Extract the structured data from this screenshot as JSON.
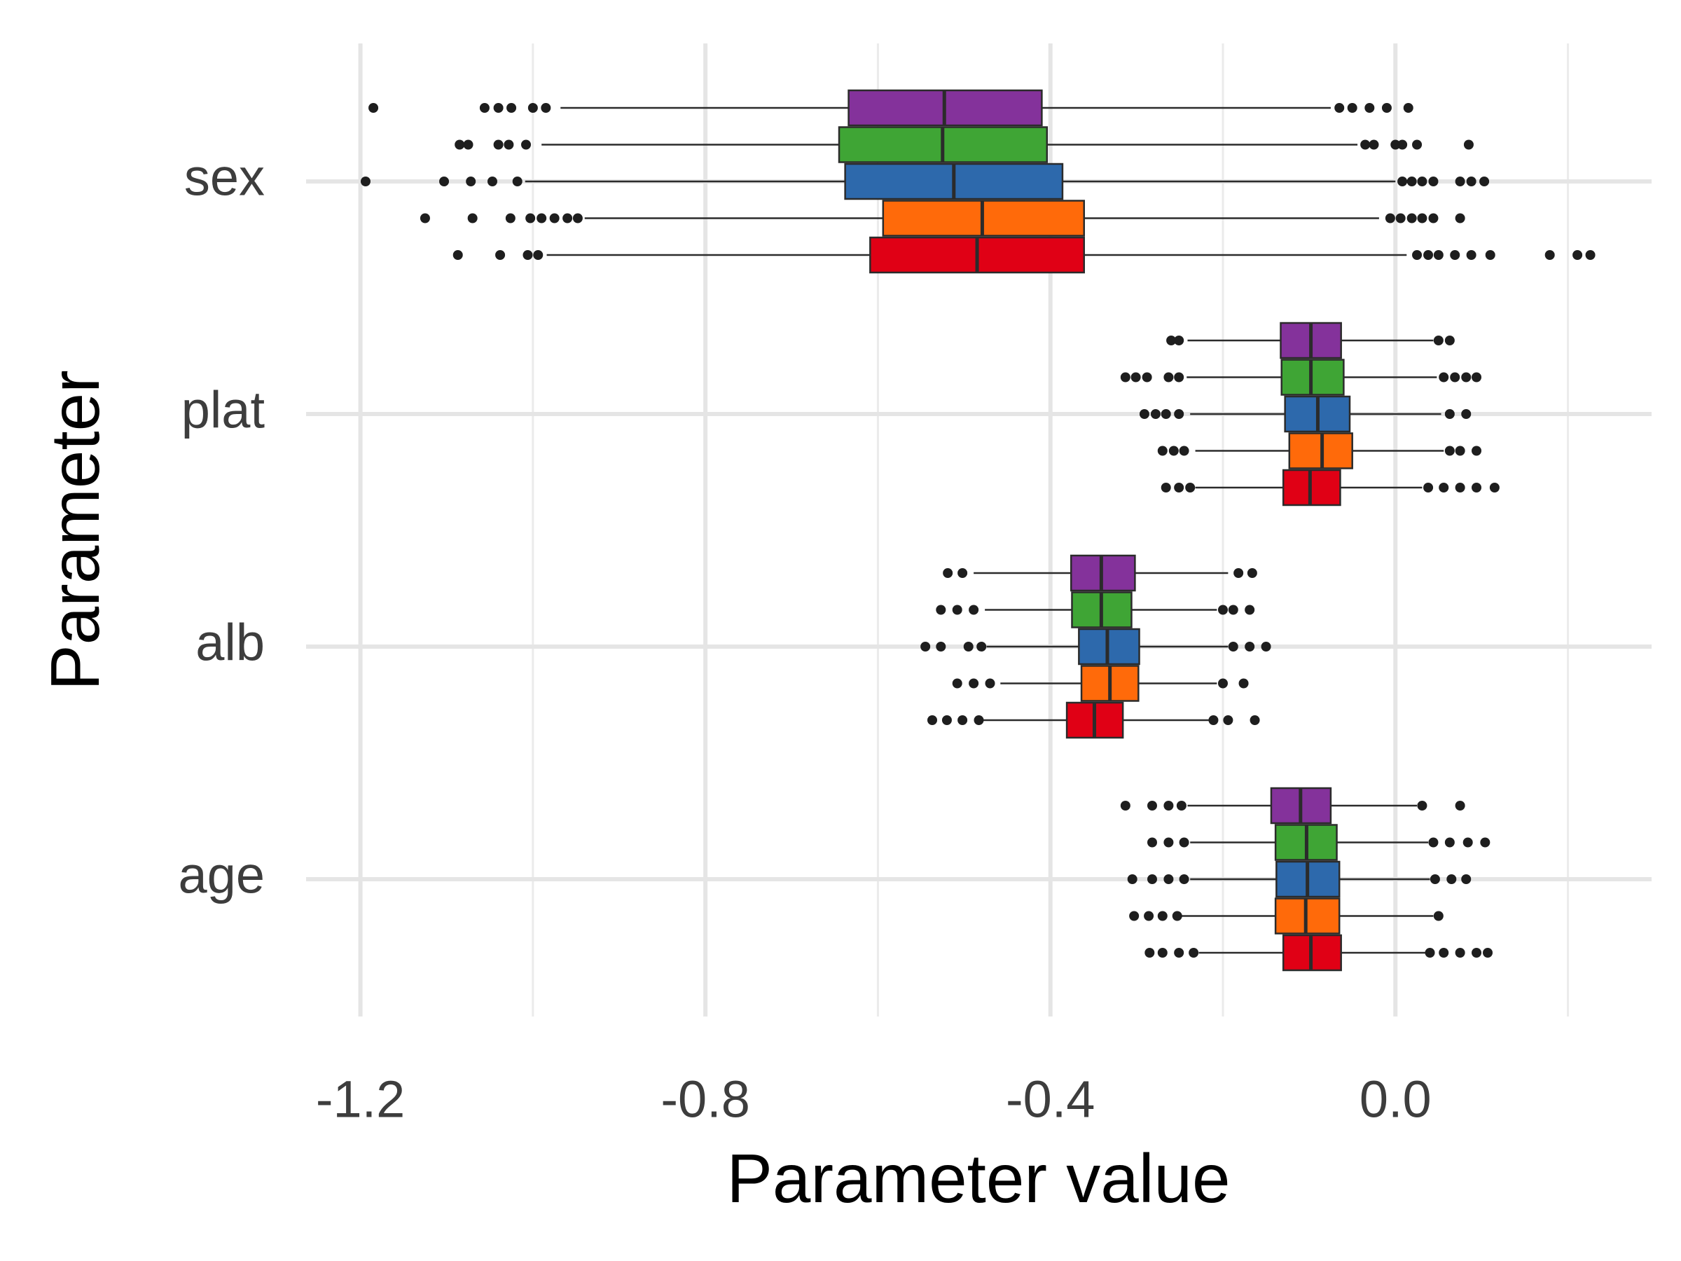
{
  "chart_data": {
    "type": "boxplot",
    "orientation": "horizontal",
    "x_label": "Parameter value",
    "y_label": "Parameter",
    "categories": [
      "sex",
      "plat",
      "alb",
      "age"
    ],
    "xlim": [
      -1.263,
      0.297
    ],
    "xticks": [
      -1.2,
      -0.8,
      -0.4,
      {
        "value": 0,
        "label": "0.0"
      }
    ],
    "xminorticks": [
      -1.0,
      -0.6,
      -0.2,
      0.2
    ],
    "grid": true,
    "series": [
      {
        "color": "#84329b",
        "boxes": [
          {
            "whislo": -0.968,
            "q1": -0.634,
            "med": -0.523,
            "q3": -0.41,
            "whishi": -0.075,
            "fliers": [
              -1.185,
              -1.056,
              -1.04,
              -1.025,
              -1.0,
              -0.985,
              -0.065,
              -0.05,
              -0.03,
              -0.01,
              0.015
            ]
          },
          {
            "whislo": -0.241,
            "q1": -0.133,
            "med": -0.098,
            "q3": -0.063,
            "whishi": 0.044,
            "fliers": [
              -0.26,
              -0.251,
              0.05,
              0.063
            ]
          },
          {
            "whislo": -0.489,
            "q1": -0.376,
            "med": -0.341,
            "q3": -0.302,
            "whishi": -0.194,
            "fliers": [
              -0.519,
              -0.502,
              -0.182,
              -0.166
            ]
          },
          {
            "whislo": -0.241,
            "q1": -0.144,
            "med": -0.11,
            "q3": -0.075,
            "whishi": 0.025,
            "fliers": [
              -0.313,
              -0.282,
              -0.263,
              -0.248,
              0.031,
              0.075
            ]
          }
        ]
      },
      {
        "color": "#3fa535",
        "boxes": [
          {
            "whislo": -0.99,
            "q1": -0.645,
            "med": -0.525,
            "q3": -0.404,
            "whishi": -0.044,
            "fliers": [
              -1.085,
              -1.075,
              -1.04,
              -1.028,
              -1.008,
              -0.035,
              -0.025,
              0.0,
              0.008,
              0.025,
              0.085
            ]
          },
          {
            "whislo": -0.242,
            "q1": -0.132,
            "med": -0.098,
            "q3": -0.06,
            "whishi": 0.048,
            "fliers": [
              -0.313,
              -0.301,
              -0.288,
              -0.263,
              -0.251,
              0.056,
              0.069,
              0.082,
              0.094
            ]
          },
          {
            "whislo": -0.476,
            "q1": -0.375,
            "med": -0.341,
            "q3": -0.306,
            "whishi": -0.207,
            "fliers": [
              -0.527,
              -0.508,
              -0.489,
              -0.2,
              -0.188,
              -0.169
            ]
          },
          {
            "whislo": -0.238,
            "q1": -0.139,
            "med": -0.103,
            "q3": -0.068,
            "whishi": 0.038,
            "fliers": [
              -0.282,
              -0.263,
              -0.245,
              0.044,
              0.063,
              0.084,
              0.104
            ]
          }
        ]
      },
      {
        "color": "#2d69ac",
        "boxes": [
          {
            "whislo": -1.009,
            "q1": -0.638,
            "med": -0.512,
            "q3": -0.386,
            "whishi": 0.0,
            "fliers": [
              -1.194,
              -1.103,
              -1.072,
              -1.047,
              -1.018,
              0.008,
              0.019,
              0.031,
              0.044,
              0.075,
              0.088,
              0.103
            ]
          },
          {
            "whislo": -0.238,
            "q1": -0.128,
            "med": -0.09,
            "q3": -0.053,
            "whishi": 0.053,
            "fliers": [
              -0.291,
              -0.278,
              -0.266,
              -0.251,
              0.063,
              0.082
            ]
          },
          {
            "whislo": -0.474,
            "q1": -0.367,
            "med": -0.334,
            "q3": -0.297,
            "whishi": -0.194,
            "fliers": [
              -0.545,
              -0.527,
              -0.495,
              -0.48,
              -0.188,
              -0.169,
              -0.15
            ]
          },
          {
            "whislo": -0.238,
            "q1": -0.138,
            "med": -0.102,
            "q3": -0.065,
            "whishi": 0.04,
            "fliers": [
              -0.305,
              -0.282,
              -0.263,
              -0.245,
              0.046,
              0.065,
              0.082
            ]
          }
        ]
      },
      {
        "color": "#ff6a0a",
        "boxes": [
          {
            "whislo": -0.94,
            "q1": -0.594,
            "med": -0.479,
            "q3": -0.361,
            "whishi": -0.019,
            "fliers": [
              -1.125,
              -1.07,
              -1.026,
              -1.003,
              -0.99,
              -0.975,
              -0.96,
              -0.948,
              -0.006,
              0.006,
              0.019,
              0.031,
              0.044,
              0.075
            ]
          },
          {
            "whislo": -0.232,
            "q1": -0.123,
            "med": -0.085,
            "q3": -0.05,
            "whishi": 0.056,
            "fliers": [
              -0.27,
              -0.257,
              -0.245,
              0.063,
              0.075,
              0.094
            ]
          },
          {
            "whislo": -0.458,
            "q1": -0.364,
            "med": -0.331,
            "q3": -0.298,
            "whishi": -0.207,
            "fliers": [
              -0.508,
              -0.489,
              -0.47,
              -0.2,
              -0.176
            ]
          },
          {
            "whislo": -0.248,
            "q1": -0.139,
            "med": -0.104,
            "q3": -0.065,
            "whishi": 0.044,
            "fliers": [
              -0.303,
              -0.286,
              -0.27,
              -0.253,
              0.05
            ]
          }
        ]
      },
      {
        "color": "#e00015",
        "boxes": [
          {
            "whislo": -0.984,
            "q1": -0.609,
            "med": -0.485,
            "q3": -0.361,
            "whishi": 0.013,
            "fliers": [
              -1.087,
              -1.038,
              -1.006,
              -0.994,
              0.025,
              0.038,
              0.05,
              0.069,
              0.088,
              0.11,
              0.179,
              0.211,
              0.226
            ]
          },
          {
            "whislo": -0.232,
            "q1": -0.13,
            "med": -0.099,
            "q3": -0.064,
            "whishi": 0.031,
            "fliers": [
              -0.266,
              -0.251,
              -0.238,
              0.038,
              0.056,
              0.075,
              0.094,
              0.115
            ]
          },
          {
            "whislo": -0.479,
            "q1": -0.381,
            "med": -0.349,
            "q3": -0.316,
            "whishi": -0.216,
            "fliers": [
              -0.537,
              -0.52,
              -0.502,
              -0.483,
              -0.211,
              -0.194,
              -0.163
            ]
          },
          {
            "whislo": -0.228,
            "q1": -0.13,
            "med": -0.098,
            "q3": -0.063,
            "whishi": 0.035,
            "fliers": [
              -0.285,
              -0.27,
              -0.251,
              -0.234,
              0.04,
              0.056,
              0.075,
              0.094,
              0.107
            ]
          }
        ]
      }
    ]
  }
}
